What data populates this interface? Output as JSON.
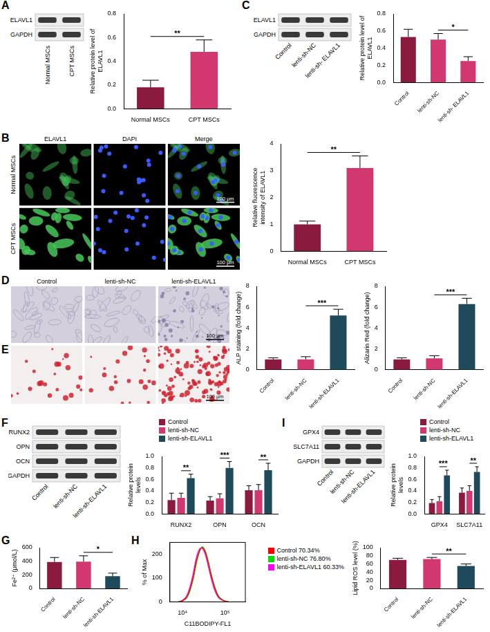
{
  "blots": [
    {
      "panel": "A",
      "rows": [
        "ELAVL1",
        "GAPDH"
      ],
      "lanes": [
        "Normal MSCs",
        "CPT MSCs"
      ]
    },
    {
      "panel": "C",
      "rows": [
        "ELAVL1",
        "GAPDH"
      ],
      "lanes": [
        "Control",
        "lenti-sh-NC",
        "lenti-sh- ELAVL1"
      ]
    },
    {
      "panel": "F",
      "rows": [
        "RUNX2",
        "OPN",
        "OCN",
        "GAPDH"
      ],
      "lanes": [
        "Control",
        "lenti-sh-NC",
        "lenti-sh-ELAVL1"
      ]
    },
    {
      "panel": "I",
      "rows": [
        "GPX4",
        "SLC7A11",
        "GAPDH"
      ],
      "lanes": [
        "Control",
        "lenti-sh-NC",
        "lenti-sh-ELAVL1"
      ]
    }
  ],
  "micrographs": [
    {
      "panel": "B",
      "columns": [
        "ELAVL1",
        "DAPI",
        "Merge"
      ],
      "rows": [
        "Normal MSCs",
        "CPT MSCs"
      ],
      "scale_bar": "100 μm"
    },
    {
      "panel": "D",
      "columns": [
        "Control",
        "lenti-sh-NC",
        "lenti-sh-ELAVL1"
      ],
      "scale_bar": "100 μm"
    },
    {
      "panel": "E",
      "scale_bar": "100 μm"
    }
  ],
  "chart_data": [
    {
      "panel": "A",
      "type": "bar",
      "categories": [
        "Normal MSCs",
        "CPT MSCs"
      ],
      "values": [
        0.18,
        0.48
      ],
      "errors": [
        0.06,
        0.1
      ],
      "colors": [
        "#8b1a3f",
        "#d1386f"
      ],
      "y_label": "Relative protein level of ELAVL1",
      "ylim": [
        0,
        0.8
      ],
      "yticks": [
        {
          "value": 0,
          "label": "0.0"
        },
        0.2,
        0.4,
        0.6,
        0.8
      ],
      "grid": false,
      "significance": [
        {
          "between": [
            "Normal MSCs",
            "CPT MSCs"
          ],
          "label": "**"
        }
      ]
    },
    {
      "panel": "C",
      "type": "bar",
      "categories": [
        "Control",
        "lenti-sh-NC",
        "lenti-sh- ELAVL1"
      ],
      "values": [
        0.53,
        0.5,
        0.25
      ],
      "errors": [
        0.09,
        0.07,
        0.05
      ],
      "colors": [
        "#8b1a3f",
        "#d1386f",
        "#d1386f"
      ],
      "y_label": "Relative protein level of ELAVL1",
      "ylim": [
        0,
        0.8
      ],
      "yticks": [
        {
          "value": 0,
          "label": "0.0"
        },
        0.2,
        0.4,
        0.6,
        0.8
      ],
      "grid": false,
      "significance": [
        {
          "between": [
            "lenti-sh-NC",
            "lenti-sh- ELAVL1"
          ],
          "label": "*"
        }
      ]
    },
    {
      "panel": "B",
      "type": "bar",
      "categories": [
        "Normal MSCs",
        "CPT MSCs"
      ],
      "values": [
        1.0,
        3.1
      ],
      "errors": [
        0.12,
        0.45
      ],
      "colors": [
        "#8b1a3f",
        "#d1386f"
      ],
      "y_label": "Relative fluorescence intensity of ELAVL1",
      "ylim": [
        0,
        4
      ],
      "yticks": [
        0,
        1,
        2,
        3,
        4
      ],
      "grid": false,
      "significance": [
        {
          "between": [
            "Normal MSCs",
            "CPT MSCs"
          ],
          "label": "**"
        }
      ]
    },
    {
      "panel": "D",
      "type": "bar",
      "categories": [
        "Control",
        "lenti-sh-NC",
        "lenti-sh-ELAVL1"
      ],
      "values": [
        1.0,
        1.0,
        5.2
      ],
      "errors": [
        0.15,
        0.25,
        0.6
      ],
      "colors": [
        "#8b1a3f",
        "#d1386f",
        "#1f4a5c"
      ],
      "y_label": "ALP staining (fold change)",
      "ylim": [
        0,
        8
      ],
      "yticks": [
        0,
        2,
        4,
        6,
        8
      ],
      "grid": false,
      "significance": [
        {
          "between": [
            "lenti-sh-NC",
            "lenti-sh-ELAVL1"
          ],
          "label": "***"
        }
      ]
    },
    {
      "panel": "E",
      "type": "bar",
      "categories": [
        "Control",
        "lenti-sh-NC",
        "lenti-sh-ELAVL1"
      ],
      "values": [
        1.0,
        1.1,
        6.3
      ],
      "errors": [
        0.15,
        0.25,
        0.55
      ],
      "colors": [
        "#8b1a3f",
        "#d1386f",
        "#1f4a5c"
      ],
      "y_label": "Alizarin Red (fold change)",
      "ylim": [
        0,
        8
      ],
      "yticks": [
        0,
        2,
        4,
        6,
        8
      ],
      "grid": false,
      "significance": [
        {
          "between": [
            "lenti-sh-NC",
            "lenti-sh-ELAVL1"
          ],
          "label": "***"
        }
      ]
    },
    {
      "panel": "F",
      "type": "bar",
      "categories": [
        "RUNX2",
        "OPN",
        "OCN"
      ],
      "series": [
        {
          "name": "Control",
          "color": "#8b1a3f",
          "values": [
            0.24,
            0.23,
            0.41
          ],
          "errors": [
            0.12,
            0.07,
            0.08
          ]
        },
        {
          "name": "lenti-sh-NC",
          "color": "#d1386f",
          "values": [
            0.28,
            0.27,
            0.41
          ],
          "errors": [
            0.08,
            0.08,
            0.1
          ]
        },
        {
          "name": "lenti-sh-ELAVL1",
          "color": "#1f4a5c",
          "values": [
            0.62,
            0.8,
            0.76
          ],
          "errors": [
            0.07,
            0.11,
            0.12
          ]
        }
      ],
      "y_label": "Relative protein levels",
      "ylim": [
        0,
        1
      ],
      "yticks": [
        {
          "value": 0,
          "label": "0.0"
        },
        0.2,
        0.4,
        0.6,
        0.8,
        {
          "value": 1,
          "label": "1.0"
        }
      ],
      "grid": false,
      "legend": "top",
      "significance": [
        {
          "category": "RUNX2",
          "between": [
            "lenti-sh-NC",
            "lenti-sh-ELAVL1"
          ],
          "label": "**"
        },
        {
          "category": "OPN",
          "between": [
            "lenti-sh-NC",
            "lenti-sh-ELAVL1"
          ],
          "label": "***"
        },
        {
          "category": "OCN",
          "between": [
            "lenti-sh-NC",
            "lenti-sh-ELAVL1"
          ],
          "label": "**"
        }
      ]
    },
    {
      "panel": "I",
      "type": "bar",
      "categories": [
        "GPX4",
        "SLC7A11"
      ],
      "series": [
        {
          "name": "Control",
          "color": "#8b1a3f",
          "values": [
            0.19,
            0.37
          ],
          "errors": [
            0.06,
            0.08
          ]
        },
        {
          "name": "lenti-sh-NC",
          "color": "#d1386f",
          "values": [
            0.22,
            0.4
          ],
          "errors": [
            0.08,
            0.09
          ]
        },
        {
          "name": "lenti-sh-ELAVL1",
          "color": "#1f4a5c",
          "values": [
            0.67,
            0.73
          ],
          "errors": [
            0.09,
            0.09
          ]
        }
      ],
      "y_label": "Relative protein levels",
      "ylim": [
        0,
        1
      ],
      "yticks": [
        {
          "value": 0,
          "label": "0.0"
        },
        0.2,
        0.4,
        0.6,
        0.8,
        {
          "value": 1,
          "label": "1.0"
        }
      ],
      "grid": false,
      "legend": "top",
      "significance": [
        {
          "category": "GPX4",
          "between": [
            "lenti-sh-NC",
            "lenti-sh-ELAVL1"
          ],
          "label": "***"
        },
        {
          "category": "SLC7A11",
          "between": [
            "lenti-sh-NC",
            "lenti-sh-ELAVL1"
          ],
          "label": "**"
        }
      ]
    },
    {
      "panel": "G",
      "type": "bar",
      "categories": [
        "Control",
        "lenti-sh-NC",
        "lenti-sh-ELAVL1"
      ],
      "values": [
        390,
        395,
        180
      ],
      "errors": [
        65,
        85,
        45
      ],
      "colors": [
        "#8b1a3f",
        "#d1386f",
        "#1f4a5c"
      ],
      "y_label": "Fe²⁺ (μmol/L)",
      "ylim": [
        0,
        600
      ],
      "yticks": [
        0,
        200,
        400,
        600
      ],
      "grid": false,
      "significance": [
        {
          "between": [
            "lenti-sh-NC",
            "lenti-sh-ELAVL1"
          ],
          "label": "*"
        }
      ]
    },
    {
      "panel": "H",
      "type": "line",
      "x": [
        8000,
        10000,
        12500,
        15000,
        18000,
        21000,
        25000,
        29000,
        34000,
        40000,
        48000,
        58000,
        70000,
        90000,
        120000
      ],
      "series": [
        {
          "name": "Control 70.34%",
          "color": "#ff0000",
          "values": [
            0,
            5,
            20,
            55,
            110,
            170,
            215,
            228,
            210,
            165,
            105,
            55,
            22,
            6,
            0
          ]
        },
        {
          "name": "lenti-sh-NC 76.80%",
          "color": "#00dd00",
          "values": [
            0,
            4,
            16,
            48,
            100,
            160,
            210,
            232,
            215,
            172,
            112,
            60,
            25,
            7,
            0
          ]
        },
        {
          "name": "lenti-sh-ELAVL1 60.33%",
          "color": "#ff00ff",
          "values": [
            0,
            7,
            26,
            66,
            125,
            185,
            222,
            225,
            200,
            150,
            92,
            45,
            18,
            5,
            0
          ]
        }
      ],
      "log": "x",
      "xlim": [
        5000,
        300000
      ],
      "xticks": [
        {
          "value": 10000,
          "label": "10⁴"
        },
        {
          "value": 100000,
          "label": "10⁵"
        }
      ],
      "ylim": [
        0,
        250
      ],
      "yticks": [
        0,
        100,
        200
      ],
      "x_label": "C11BODIPY-FL1",
      "y_label": "% of Max",
      "grid": false,
      "legend": "right"
    },
    {
      "panel": "H",
      "type": "bar",
      "categories": [
        "Control",
        "lenti-sh-NC",
        "lenti-sh-ELAVL1"
      ],
      "values": [
        70,
        72,
        55
      ],
      "errors": [
        4,
        4,
        5
      ],
      "colors": [
        "#8b1a3f",
        "#d1386f",
        "#1f4a5c"
      ],
      "y_label": "Lipid ROS level (%)",
      "ylim": [
        0,
        100
      ],
      "yticks": [
        0,
        20,
        40,
        60,
        80,
        100
      ],
      "grid": false,
      "significance": [
        {
          "between": [
            "lenti-sh-NC",
            "lenti-sh-ELAVL1"
          ],
          "label": "**"
        }
      ]
    }
  ]
}
